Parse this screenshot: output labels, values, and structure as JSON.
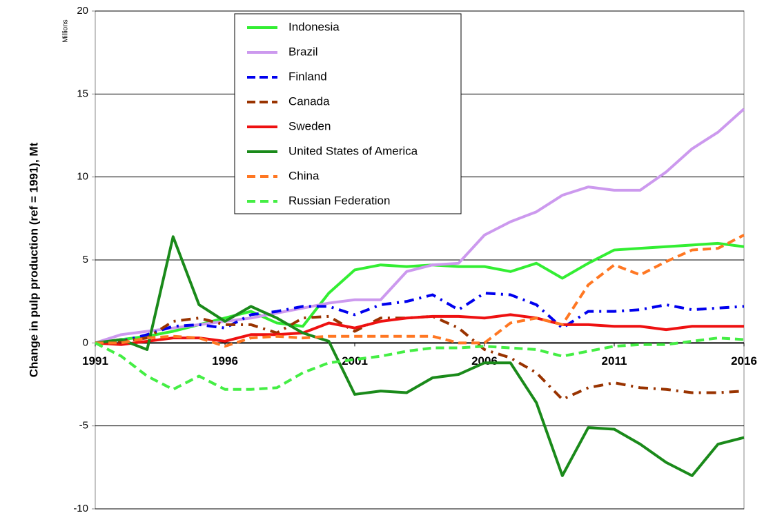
{
  "chart_data": {
    "type": "line",
    "ylabel": "Change in pulp production (ref = 1991), Mt",
    "unit_label": "Millions",
    "x": [
      1991,
      1992,
      1993,
      1994,
      1995,
      1996,
      1997,
      1998,
      1999,
      2000,
      2001,
      2002,
      2003,
      2004,
      2005,
      2006,
      2007,
      2008,
      2009,
      2010,
      2011,
      2012,
      2013,
      2014,
      2015,
      2016
    ],
    "xlim": [
      1991,
      2016
    ],
    "xticks": [
      1991,
      1996,
      2001,
      2006,
      2011,
      2016
    ],
    "ylim": [
      -10,
      20
    ],
    "yticks": [
      -10,
      -5,
      0,
      5,
      10,
      15,
      20
    ],
    "grid": true,
    "legend": "top-left",
    "series": [
      {
        "name": "Indonesia",
        "color": "#33ee33",
        "style": "solid",
        "values": [
          0,
          0.2,
          0.4,
          0.7,
          1.1,
          1.5,
          1.9,
          1.2,
          1.0,
          3.0,
          4.4,
          4.7,
          4.6,
          4.7,
          4.6,
          4.6,
          4.3,
          4.8,
          3.9,
          4.8,
          5.6,
          5.7,
          5.8,
          5.9,
          6.0,
          5.8
        ]
      },
      {
        "name": "Brazil",
        "color": "#cc99ee",
        "style": "solid",
        "values": [
          0,
          0.5,
          0.7,
          0.9,
          1.1,
          1.3,
          1.5,
          1.8,
          2.1,
          2.4,
          2.6,
          2.6,
          4.3,
          4.7,
          4.8,
          6.5,
          7.3,
          7.9,
          8.9,
          9.4,
          9.2,
          9.2,
          10.3,
          11.7,
          12.7,
          14.1
        ]
      },
      {
        "name": "Finland",
        "color": "#0000ee",
        "style": "dashdot",
        "values": [
          0,
          0.1,
          0.5,
          1.0,
          1.1,
          0.9,
          1.7,
          1.9,
          2.2,
          2.2,
          1.7,
          2.3,
          2.5,
          2.9,
          2.0,
          3.0,
          2.9,
          2.3,
          0.9,
          1.9,
          1.9,
          2.0,
          2.3,
          2.0,
          2.1,
          2.2
        ]
      },
      {
        "name": "Canada",
        "color": "#993300",
        "style": "dashdot",
        "values": [
          0,
          0.1,
          0.3,
          1.3,
          1.5,
          1.1,
          1.1,
          0.6,
          1.5,
          1.6,
          0.7,
          1.5,
          1.5,
          1.6,
          0.9,
          -0.4,
          -0.9,
          -1.8,
          -3.4,
          -2.7,
          -2.4,
          -2.7,
          -2.8,
          -3.0,
          -3.0,
          -2.9
        ]
      },
      {
        "name": "Sweden",
        "color": "#ee1111",
        "style": "solid",
        "values": [
          0,
          -0.1,
          0.1,
          0.3,
          0.3,
          0.1,
          0.5,
          0.5,
          0.6,
          1.2,
          0.9,
          1.3,
          1.5,
          1.6,
          1.6,
          1.5,
          1.7,
          1.5,
          1.1,
          1.1,
          1.0,
          1.0,
          0.8,
          1.0,
          1.0,
          1.0
        ]
      },
      {
        "name": "United States of America",
        "color": "#1a8a1a",
        "style": "solid",
        "values": [
          0,
          0.2,
          -0.4,
          6.4,
          2.3,
          1.3,
          2.2,
          1.5,
          0.6,
          0.1,
          -3.1,
          -2.9,
          -3.0,
          -2.1,
          -1.9,
          -1.2,
          -1.2,
          -3.6,
          -8.0,
          -5.1,
          -5.2,
          -6.1,
          -7.2,
          -8.0,
          -6.1,
          -5.7
        ]
      },
      {
        "name": "China",
        "color": "#ff7722",
        "style": "dashed",
        "values": [
          0,
          0.0,
          0.3,
          0.4,
          0.3,
          -0.2,
          0.3,
          0.4,
          0.3,
          0.4,
          0.4,
          0.4,
          0.4,
          0.4,
          0.0,
          0.0,
          1.2,
          1.5,
          1.1,
          3.5,
          4.7,
          4.1,
          4.9,
          5.6,
          5.7,
          6.5
        ]
      },
      {
        "name": "Russian Federation",
        "color": "#44ee44",
        "style": "dashed",
        "values": [
          0,
          -0.8,
          -2.0,
          -2.8,
          -2.0,
          -2.8,
          -2.8,
          -2.7,
          -1.8,
          -1.2,
          -1.0,
          -0.8,
          -0.5,
          -0.3,
          -0.3,
          -0.2,
          -0.3,
          -0.4,
          -0.8,
          -0.5,
          -0.2,
          -0.1,
          -0.1,
          0.1,
          0.3,
          0.2
        ]
      }
    ]
  }
}
